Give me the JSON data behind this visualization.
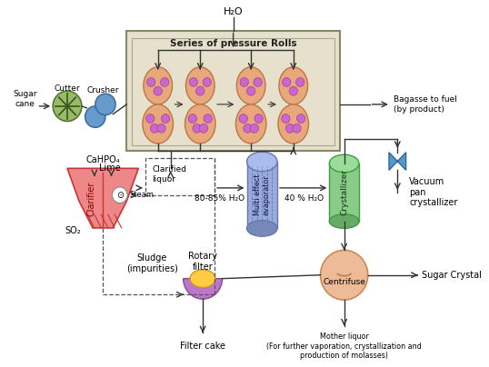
{
  "bg_color": "#ffffff",
  "rolls_title": "Series of pressure Rolls",
  "h2o_label": "H₂O",
  "bagasse_label": "Bagasse to fuel\n(by product)",
  "sugarcane_label": "Sugar\ncane",
  "cutter_label": "Cutter",
  "crusher_label": "Crusher",
  "cahpo4_label": "CaHPO₄",
  "lime_label": "Lime",
  "so2_label": "SO₂",
  "steam_label": "Steam",
  "clarified_liquor_label": "Clarified\nliquor",
  "clarifier_label": "Clarifier",
  "multi_effect_label": "Multi effect\nevaporator",
  "water_pct_label1": "80-85% H₂O",
  "water_pct_label2": "40 % H₂O",
  "crystallizer_label": "Crystallizer",
  "vacuum_label": "Vacuum\npan\ncrystallizer",
  "centrifuse_label": "Centrifuse",
  "sugar_crystal_label": "Sugar Crystal",
  "sludge_label": "Sludge\n(impurities)",
  "rotary_filter_label": "Rotary\nfilter",
  "filter_cake_label": "Filter cake",
  "mother_liquor_label": "Mother liquor\n(For further vaporation, crystallization and\nproduction of molasses)"
}
